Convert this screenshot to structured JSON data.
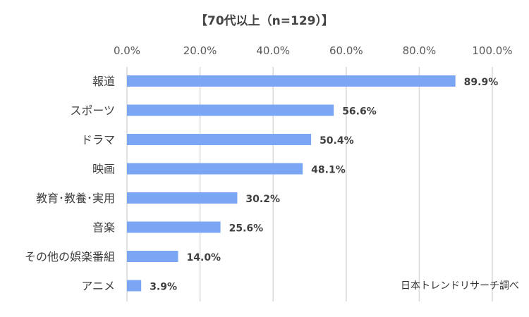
{
  "chart_data": {
    "type": "bar",
    "orientation": "horizontal",
    "title": "【70代以上（n=129）】",
    "categories": [
      "報道",
      "スポーツ",
      "ドラマ",
      "映画",
      "教育･教養･実用",
      "音楽",
      "その他の娯楽番組",
      "アニメ"
    ],
    "values": [
      89.9,
      56.6,
      50.4,
      48.1,
      30.2,
      25.6,
      14.0,
      3.9
    ],
    "value_labels": [
      "89.9%",
      "56.6%",
      "50.4%",
      "48.1%",
      "30.2%",
      "25.6%",
      "14.0%",
      "3.9%"
    ],
    "x_ticks": [
      "0.0%",
      "20.0%",
      "40.0%",
      "60.0%",
      "80.0%",
      "100.0%"
    ],
    "xlim": [
      0,
      100
    ],
    "grid": true,
    "bar_color": "#7BA6F4",
    "grid_color": "#D9D9D9",
    "source": "日本トレンドリサーチ調べ"
  }
}
